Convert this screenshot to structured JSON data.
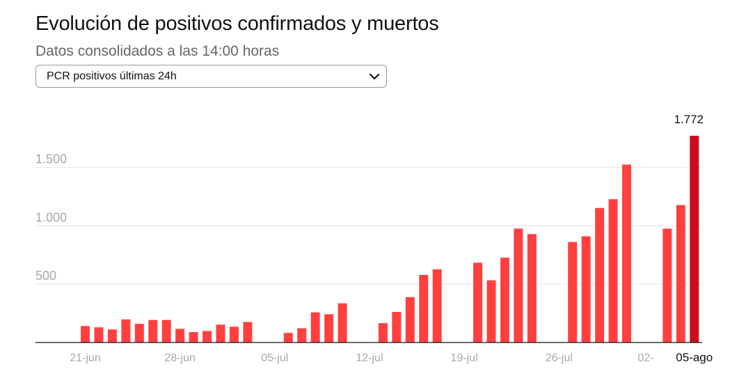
{
  "header": {
    "title": "Evolución de positivos confirmados y muertos",
    "subtitle": "Datos consolidados a las 14:00 horas"
  },
  "selector": {
    "selected": "PCR positivos últimas 24h"
  },
  "colors": {
    "bar": "#ff4040",
    "bar_highlight": "#cc0d1e",
    "grid": "#e6e6e6",
    "axis": "#111111"
  },
  "chart_data": {
    "type": "bar",
    "title": "",
    "xlabel": "",
    "ylabel": "",
    "ylim": [
      0,
      1772
    ],
    "yticks": [
      500,
      1000,
      1500
    ],
    "ytick_labels": [
      "500",
      "1.000",
      "1.500"
    ],
    "x_tick_labels": [
      "21-jun",
      "28-jun",
      "05-jul",
      "12-jul",
      "19-jul",
      "26-jul",
      "02-",
      "05-ago"
    ],
    "grid": true,
    "days": [
      "21-jun",
      "22-jun",
      "23-jun",
      "24-jun",
      "25-jun",
      "26-jun",
      "27-jun",
      "28-jun",
      "29-jun",
      "30-jun",
      "01-jul",
      "02-jul",
      "03-jul",
      "04-jul",
      "05-jul",
      "06-jul",
      "07-jul",
      "08-jul",
      "09-jul",
      "10-jul",
      "11-jul",
      "12-jul",
      "13-jul",
      "14-jul",
      "15-jul",
      "16-jul",
      "17-jul",
      "18-jul",
      "19-jul",
      "20-jul",
      "21-jul",
      "22-jul",
      "23-jul",
      "24-jul",
      "25-jul",
      "26-jul",
      "27-jul",
      "28-jul",
      "29-jul",
      "30-jul",
      "31-jul",
      "01-ago",
      "02-ago",
      "03-ago",
      "04-ago",
      "05-ago"
    ],
    "values": [
      141,
      130,
      112,
      198,
      160,
      193,
      193,
      117,
      89,
      99,
      153,
      135,
      176,
      null,
      null,
      82,
      122,
      258,
      242,
      336,
      null,
      null,
      166,
      262,
      389,
      579,
      627,
      null,
      null,
      684,
      533,
      727,
      976,
      929,
      null,
      null,
      861,
      910,
      1153,
      1228,
      1525,
      null,
      null,
      976,
      1178,
      1772
    ],
    "highlight_index": 45,
    "highlight_label": "1.772"
  }
}
